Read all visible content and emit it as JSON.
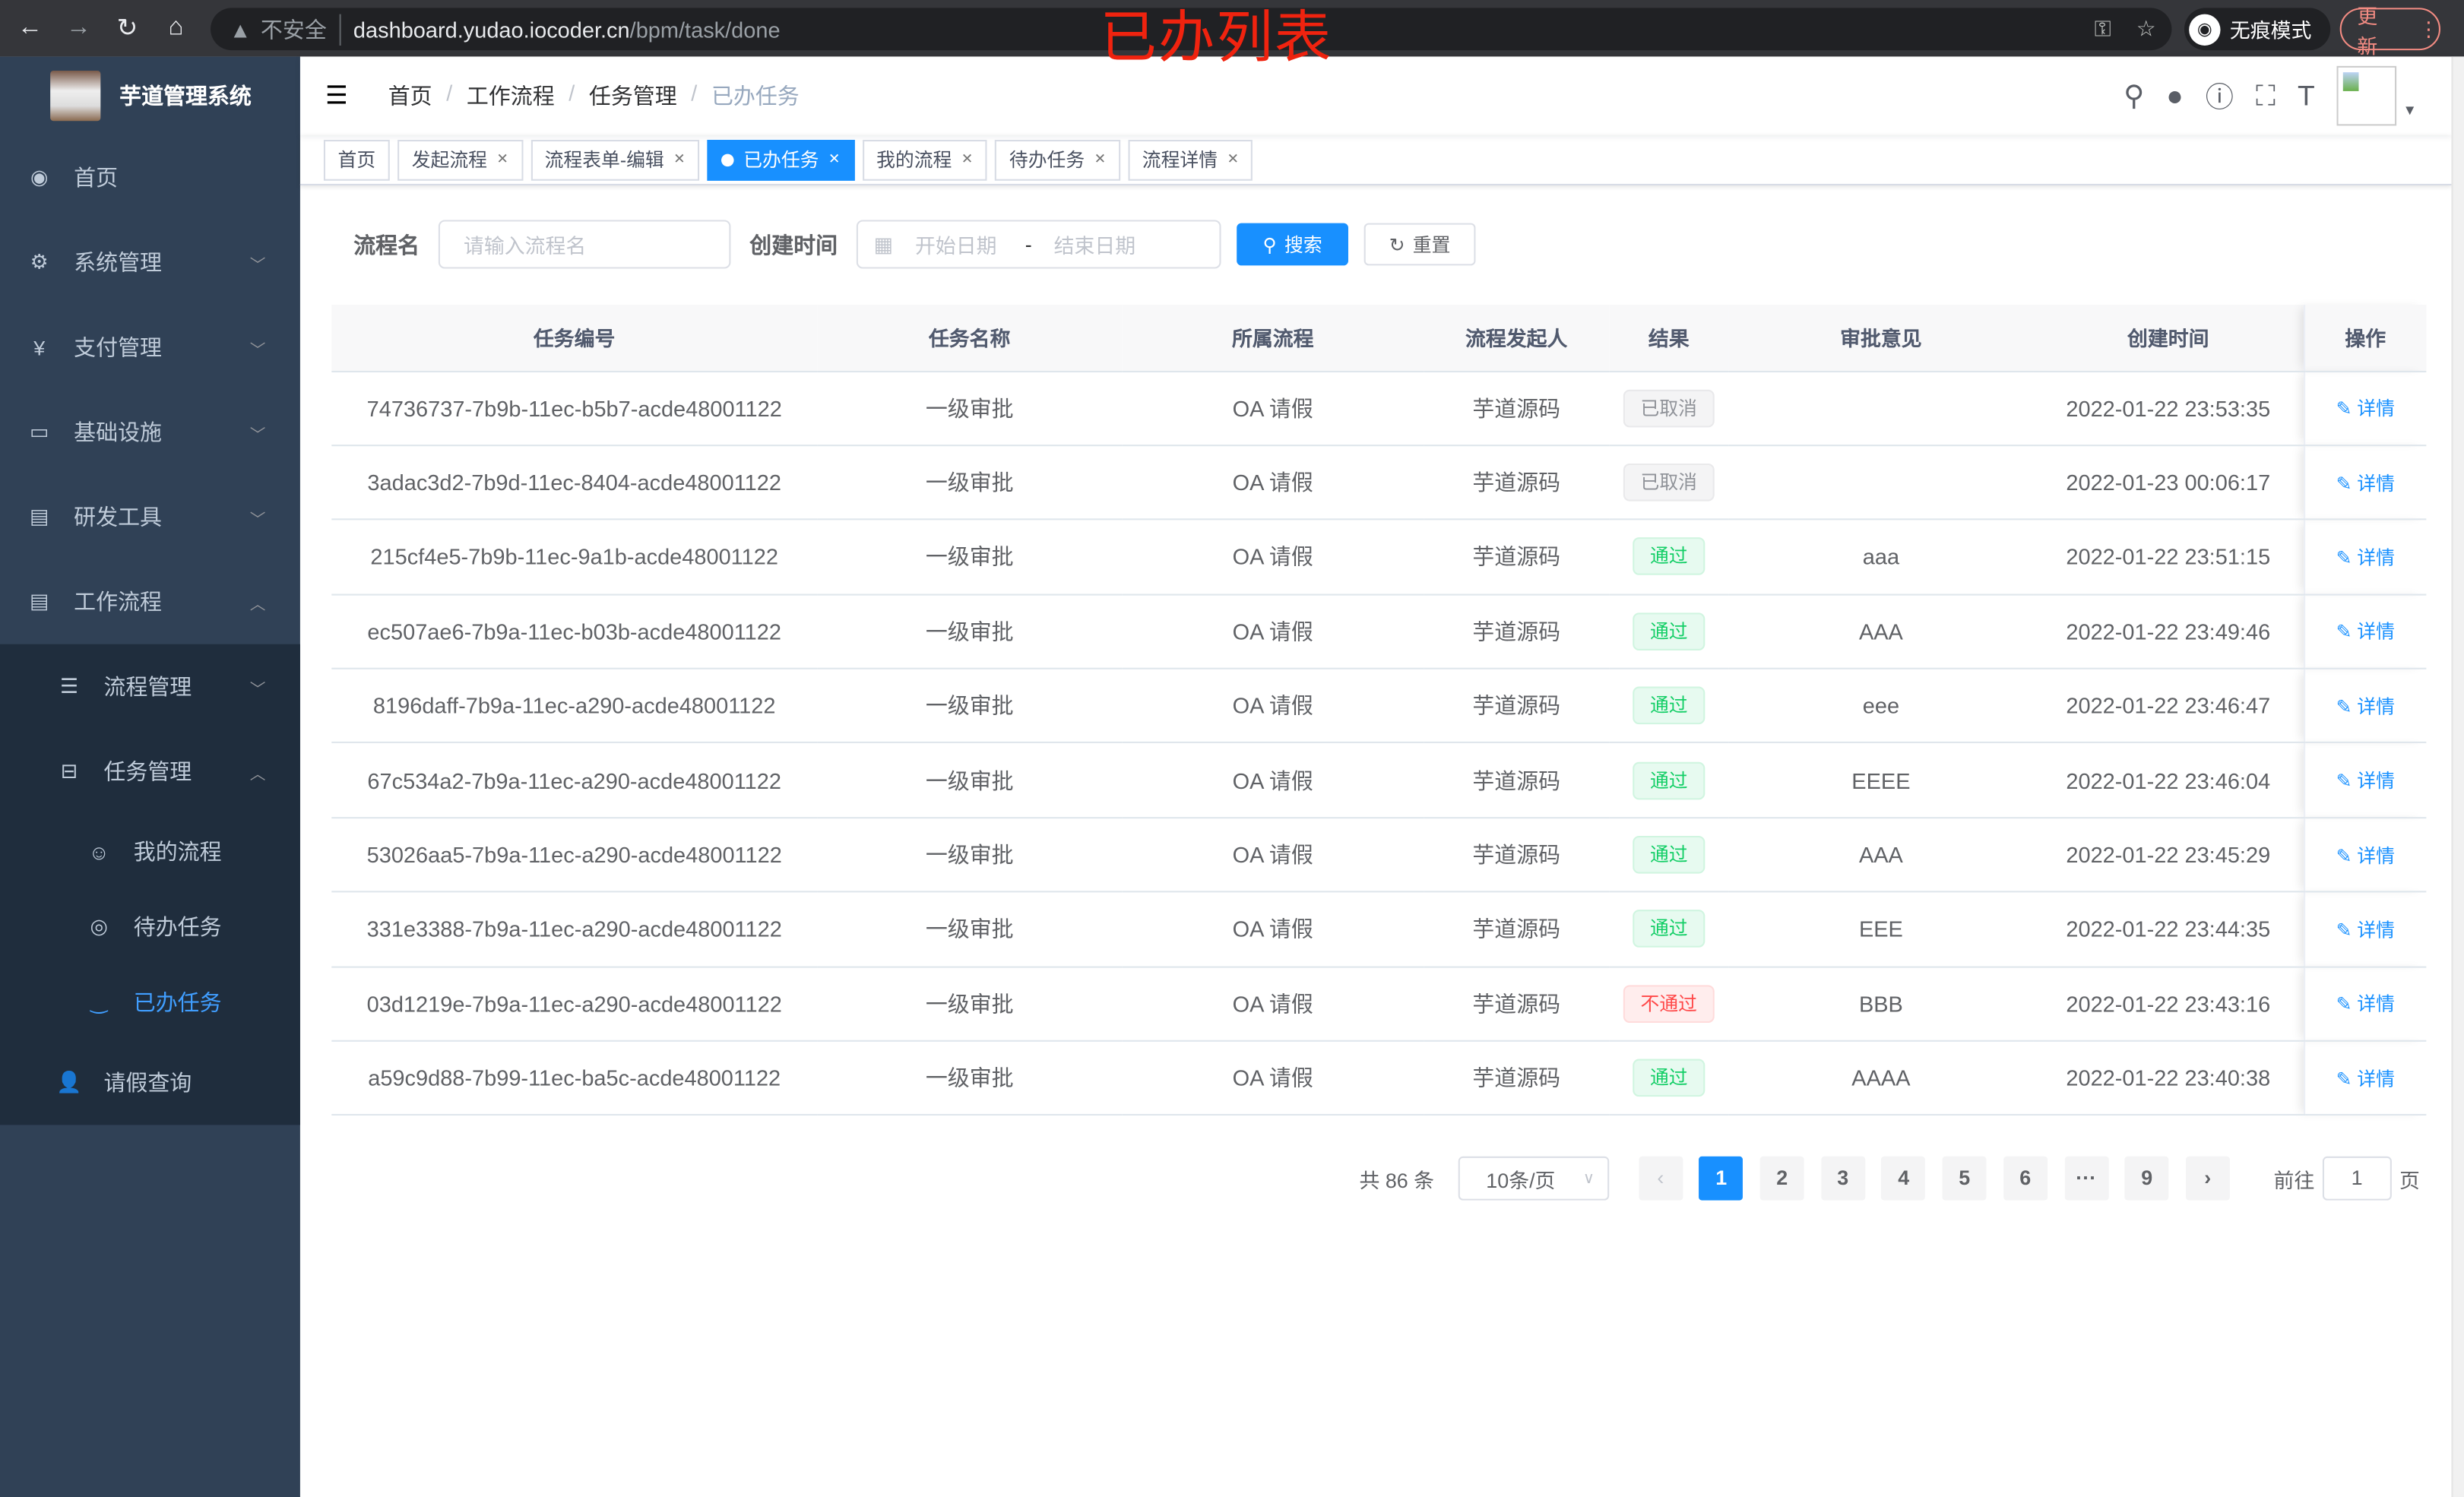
{
  "browser": {
    "url_host": "dashboard.yudao.iocoder.cn",
    "url_path": "/bpm/task/done",
    "insecure": "不安全",
    "incognito": "无痕模式",
    "update": "更新"
  },
  "annotation": "已办列表",
  "app": {
    "title": "芋道管理系统"
  },
  "sidebar": {
    "items": [
      {
        "label": "首页",
        "icon": "dashboard-icon"
      },
      {
        "label": "系统管理",
        "icon": "gear-icon"
      },
      {
        "label": "支付管理",
        "icon": "yen-icon"
      },
      {
        "label": "基础设施",
        "icon": "monitor-icon"
      },
      {
        "label": "研发工具",
        "icon": "toolbox-icon"
      },
      {
        "label": "工作流程",
        "icon": "toolbox-icon"
      }
    ],
    "workflow_children": [
      {
        "label": "流程管理"
      },
      {
        "label": "任务管理"
      }
    ],
    "task_children": [
      {
        "label": "我的流程"
      },
      {
        "label": "待办任务"
      },
      {
        "label": "已办任务"
      }
    ],
    "leave": {
      "label": "请假查询"
    }
  },
  "breadcrumb": [
    "首页",
    "工作流程",
    "任务管理",
    "已办任务"
  ],
  "tags": [
    {
      "label": "首页"
    },
    {
      "label": "发起流程"
    },
    {
      "label": "流程表单-编辑"
    },
    {
      "label": "已办任务",
      "active": true
    },
    {
      "label": "我的流程"
    },
    {
      "label": "待办任务"
    },
    {
      "label": "流程详情"
    }
  ],
  "search": {
    "name_label": "流程名",
    "name_placeholder": "请输入流程名",
    "time_label": "创建时间",
    "start_placeholder": "开始日期",
    "sep": "-",
    "end_placeholder": "结束日期",
    "search_btn": "搜索",
    "reset_btn": "重置"
  },
  "table": {
    "headers": [
      "任务编号",
      "任务名称",
      "所属流程",
      "流程发起人",
      "结果",
      "审批意见",
      "创建时间",
      "操作"
    ],
    "detail_label": "详情",
    "rows": [
      {
        "id": "74736737-7b9b-11ec-b5b7-acde48001122",
        "name": "一级审批",
        "process": "OA 请假",
        "starter": "芋道源码",
        "result": "已取消",
        "status": "cancel",
        "comment": "",
        "time": "2022-01-22 23:53:35"
      },
      {
        "id": "3adac3d2-7b9d-11ec-8404-acde48001122",
        "name": "一级审批",
        "process": "OA 请假",
        "starter": "芋道源码",
        "result": "已取消",
        "status": "cancel",
        "comment": "",
        "time": "2022-01-23 00:06:17"
      },
      {
        "id": "215cf4e5-7b9b-11ec-9a1b-acde48001122",
        "name": "一级审批",
        "process": "OA 请假",
        "starter": "芋道源码",
        "result": "通过",
        "status": "pass",
        "comment": "aaa",
        "time": "2022-01-22 23:51:15"
      },
      {
        "id": "ec507ae6-7b9a-11ec-b03b-acde48001122",
        "name": "一级审批",
        "process": "OA 请假",
        "starter": "芋道源码",
        "result": "通过",
        "status": "pass",
        "comment": "AAA",
        "time": "2022-01-22 23:49:46"
      },
      {
        "id": "8196daff-7b9a-11ec-a290-acde48001122",
        "name": "一级审批",
        "process": "OA 请假",
        "starter": "芋道源码",
        "result": "通过",
        "status": "pass",
        "comment": "eee",
        "time": "2022-01-22 23:46:47"
      },
      {
        "id": "67c534a2-7b9a-11ec-a290-acde48001122",
        "name": "一级审批",
        "process": "OA 请假",
        "starter": "芋道源码",
        "result": "通过",
        "status": "pass",
        "comment": "EEEE",
        "time": "2022-01-22 23:46:04"
      },
      {
        "id": "53026aa5-7b9a-11ec-a290-acde48001122",
        "name": "一级审批",
        "process": "OA 请假",
        "starter": "芋道源码",
        "result": "通过",
        "status": "pass",
        "comment": "AAA",
        "time": "2022-01-22 23:45:29"
      },
      {
        "id": "331e3388-7b9a-11ec-a290-acde48001122",
        "name": "一级审批",
        "process": "OA 请假",
        "starter": "芋道源码",
        "result": "通过",
        "status": "pass",
        "comment": "EEE",
        "time": "2022-01-22 23:44:35"
      },
      {
        "id": "03d1219e-7b9a-11ec-a290-acde48001122",
        "name": "一级审批",
        "process": "OA 请假",
        "starter": "芋道源码",
        "result": "不通过",
        "status": "reject",
        "comment": "BBB",
        "time": "2022-01-22 23:43:16"
      },
      {
        "id": "a59c9d88-7b99-11ec-ba5c-acde48001122",
        "name": "一级审批",
        "process": "OA 请假",
        "starter": "芋道源码",
        "result": "通过",
        "status": "pass",
        "comment": "AAAA",
        "time": "2022-01-22 23:40:38"
      }
    ]
  },
  "pagination": {
    "total": "共 86 条",
    "page_size": "10条/页",
    "pages": [
      "1",
      "2",
      "3",
      "4",
      "5",
      "6",
      "···",
      "9"
    ],
    "current": "1",
    "goto_label": "前往",
    "goto_value": "1",
    "page_unit": "页"
  },
  "colors": {
    "primary": "#1890ff",
    "sidebar": "#304156",
    "submenu": "#1f2d3d",
    "pass": "#13ce66",
    "reject": "#ff4949",
    "cancel": "#909399"
  }
}
